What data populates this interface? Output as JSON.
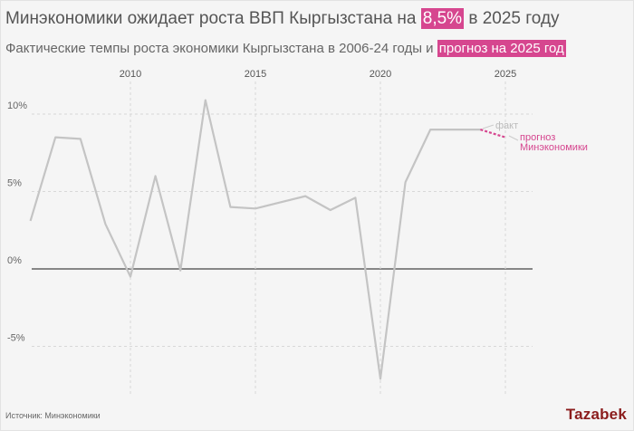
{
  "header": {
    "title_before": "Минэкономики ожидает роста ВВП Кыргызстана на ",
    "title_highlight": "8,5%",
    "title_after": " в 2025 году",
    "subtitle_before": "Фактические темпы роста экономики Кыргызстана в 2006-24 годы и ",
    "subtitle_highlight": "прогноз на 2025 год"
  },
  "chart_data": {
    "type": "line",
    "x_ticks": [
      "2010",
      "2015",
      "2020",
      "2025"
    ],
    "y_ticks": [
      "10%",
      "5%",
      "0%",
      "-5%"
    ],
    "xlim": [
      2006,
      2026
    ],
    "ylim": [
      -8,
      12
    ],
    "grid": true,
    "series": [
      {
        "name": "факт",
        "color": "#c4c4c4",
        "x": [
          2006,
          2007,
          2008,
          2009,
          2010,
          2011,
          2012,
          2013,
          2014,
          2015,
          2016,
          2017,
          2018,
          2019,
          2020,
          2021,
          2022,
          2023,
          2024
        ],
        "y": [
          3.1,
          8.5,
          8.4,
          2.9,
          -0.5,
          6.0,
          -0.1,
          10.9,
          4.0,
          3.9,
          4.3,
          4.7,
          3.8,
          4.6,
          -7.1,
          5.6,
          9.0,
          9.0,
          9.0
        ]
      },
      {
        "name": "прогноз Минэкономики",
        "color": "#d6468f",
        "dashed": true,
        "x": [
          2024,
          2025
        ],
        "y": [
          9.0,
          8.5
        ]
      }
    ],
    "annotations": {
      "fact": "факт",
      "forecast_line1": "прогноз",
      "forecast_line2": "Минэкономики"
    }
  },
  "footer": {
    "source": "Источник: Минэкономики",
    "logo": "Tazabek"
  }
}
